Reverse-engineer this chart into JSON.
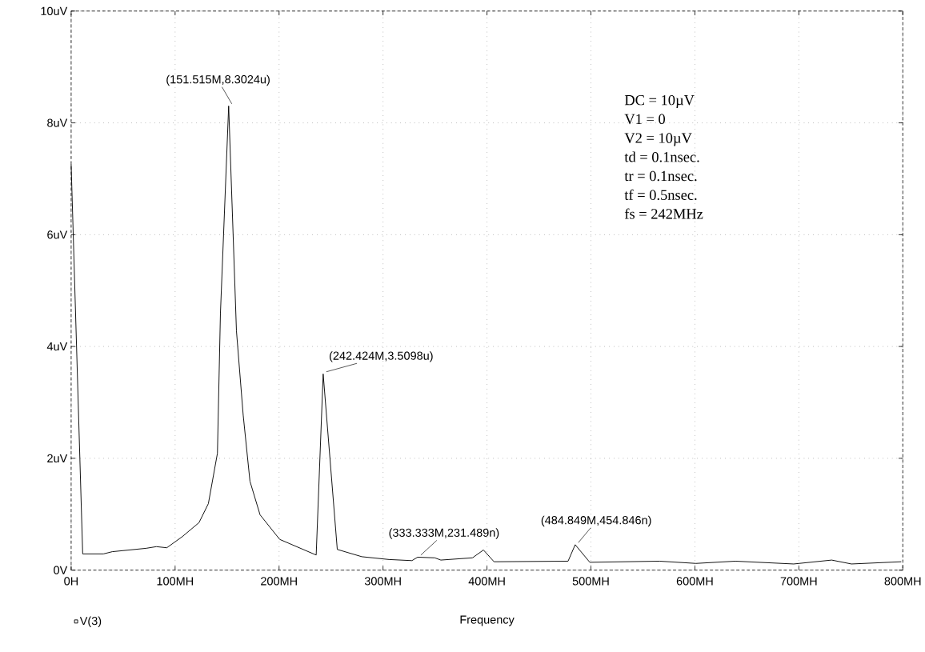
{
  "chart_data": {
    "type": "line",
    "xlabel": "Frequency",
    "x": [
      0,
      11.1,
      31,
      39.6,
      72,
      82,
      92,
      107,
      123,
      132,
      140.7,
      143.6,
      151.515,
      159,
      165.5,
      172,
      181.7,
      200.6,
      235.7,
      242.424,
      256,
      279.6,
      305.7,
      327.8,
      333.333,
      349.8,
      355.6,
      386,
      396.6,
      406.8,
      478,
      484.849,
      498.9,
      566,
      601,
      639,
      695,
      731.6,
      750.6,
      798.5
    ],
    "series": [
      {
        "name": "V(3)",
        "color": "#000000",
        "values": [
          7.26,
          0.29,
          0.29,
          0.33,
          0.39,
          0.42,
          0.4,
          0.6,
          0.85,
          1.19,
          2.09,
          4.59,
          8.3024,
          4.28,
          2.77,
          1.59,
          0.99,
          0.55,
          0.27,
          3.5098,
          0.37,
          0.24,
          0.19,
          0.17,
          0.231489,
          0.22,
          0.18,
          0.22,
          0.36,
          0.15,
          0.16,
          0.454846,
          0.14,
          0.16,
          0.12,
          0.16,
          0.11,
          0.18,
          0.11,
          0.15
        ]
      }
    ],
    "xlim": [
      0,
      800
    ],
    "ylim": [
      0,
      10
    ],
    "xticks": [
      {
        "value": 0,
        "label": "0H"
      },
      {
        "value": 100,
        "label": "100MH"
      },
      {
        "value": 200,
        "label": "200MH"
      },
      {
        "value": 300,
        "label": "300MH"
      },
      {
        "value": 400,
        "label": "400MH"
      },
      {
        "value": 500,
        "label": "500MH"
      },
      {
        "value": 600,
        "label": "600MH"
      },
      {
        "value": 700,
        "label": "700MH"
      },
      {
        "value": 800,
        "label": "800MH"
      }
    ],
    "yticks": [
      {
        "value": 0,
        "label": "0V"
      },
      {
        "value": 2,
        "label": "2uV"
      },
      {
        "value": 4,
        "label": "4uV"
      },
      {
        "value": 6,
        "label": "6uV"
      },
      {
        "value": 8,
        "label": "8uV"
      },
      {
        "value": 10,
        "label": "10uV"
      }
    ],
    "grid": true,
    "legend": "bottom left",
    "line_style": "solid",
    "annotations": [
      {
        "text": "(151.515M,8.3024u)",
        "x": 151.515,
        "y": 8.3024
      },
      {
        "text": "(242.424M,3.5098u)",
        "x": 242.424,
        "y": 3.5098
      },
      {
        "text": "(333.333M,231.489n)",
        "x": 333.333,
        "y": 0.231489
      },
      {
        "text": "(484.849M,454.846n)",
        "x": 484.849,
        "y": 0.454846
      },
      "DC = 10µV",
      "V1 = 0",
      "V2 = 10µV",
      "td = 0.1nsec.",
      "tr = 0.1nsec.",
      "tf = 0.5nsec.",
      "fs = 242MHz"
    ]
  }
}
